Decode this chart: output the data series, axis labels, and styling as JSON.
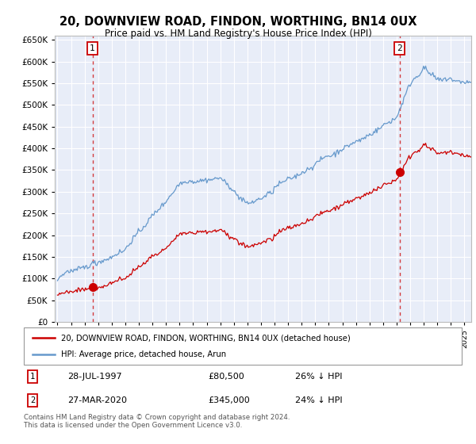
{
  "title": "20, DOWNVIEW ROAD, FINDON, WORTHING, BN14 0UX",
  "subtitle": "Price paid vs. HM Land Registry's House Price Index (HPI)",
  "legend_label_red": "20, DOWNVIEW ROAD, FINDON, WORTHING, BN14 0UX (detached house)",
  "legend_label_blue": "HPI: Average price, detached house, Arun",
  "sale1_date": "28-JUL-1997",
  "sale1_price": "£80,500",
  "sale1_note": "26% ↓ HPI",
  "sale2_date": "27-MAR-2020",
  "sale2_price": "£345,000",
  "sale2_note": "24% ↓ HPI",
  "footer": "Contains HM Land Registry data © Crown copyright and database right 2024.\nThis data is licensed under the Open Government Licence v3.0.",
  "plot_bg_color": "#e8edf8",
  "red_color": "#cc0000",
  "blue_color": "#6699cc",
  "grid_color": "#ffffff",
  "sale1_year": 1997.58,
  "sale1_value": 80500,
  "sale2_year": 2020.23,
  "sale2_value": 345000,
  "ylim_max": 660000,
  "xlim_min": 1994.8,
  "xlim_max": 2025.5
}
